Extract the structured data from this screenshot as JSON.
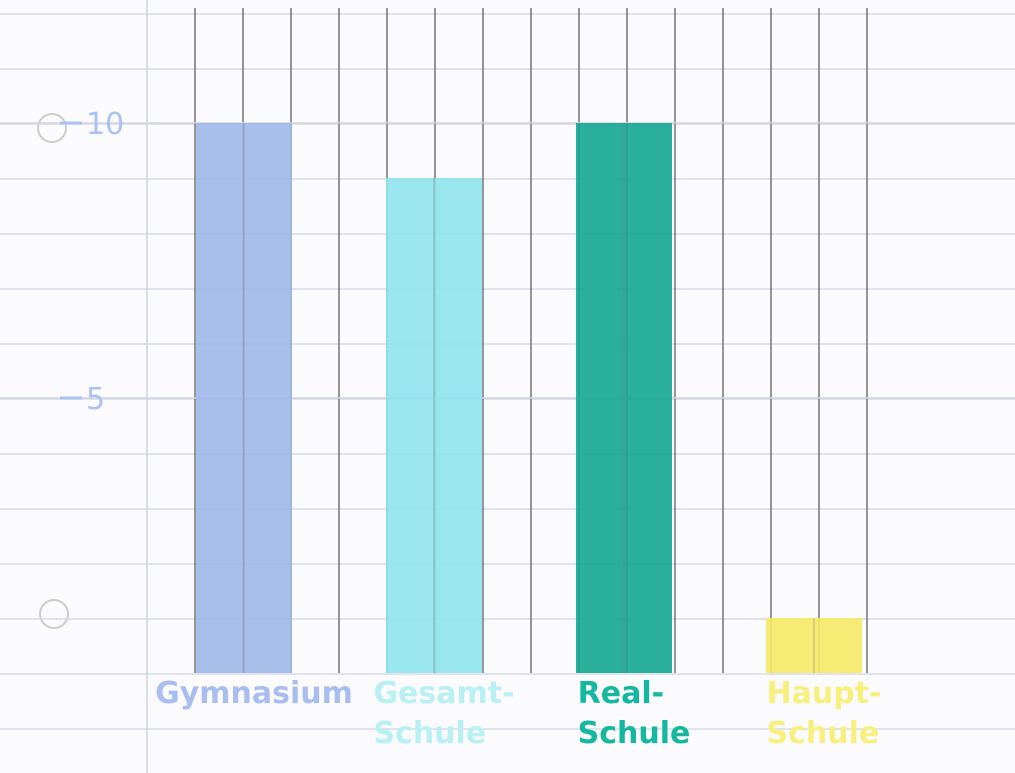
{
  "chart_data": {
    "type": "bar",
    "categories": [
      "Gymnasium",
      "Gesamt-\nSchule",
      "Real-\nSchule",
      "Haupt-\nSchule"
    ],
    "series": [
      {
        "values": [
          10,
          9,
          10,
          1
        ],
        "colors": [
          "#9fb8ea",
          "#8fe3ec",
          "#14a692",
          "#f5ea66"
        ]
      }
    ],
    "label_colors": [
      "#a9bdf0",
      "#b9f0f4",
      "#14b79f",
      "#f8f07e"
    ],
    "ylim": [
      0,
      12
    ],
    "yticks": [
      5,
      10
    ],
    "tick_color": "#a9c2f2",
    "grid": true
  }
}
